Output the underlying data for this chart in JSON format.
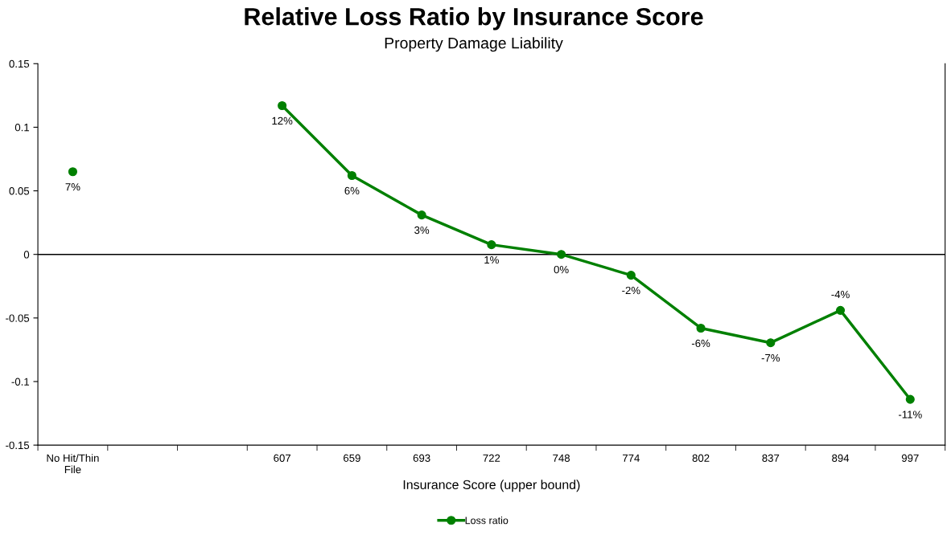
{
  "chart_data": {
    "type": "line",
    "title": "Relative Loss Ratio by Insurance Score",
    "subtitle": "Property Damage Liability",
    "xlabel": "Insurance Score (upper bound)",
    "categories": [
      "No Hit/Thin\nFile",
      null,
      null,
      "607",
      "659",
      "693",
      "722",
      "748",
      "774",
      "802",
      "837",
      "894",
      "997"
    ],
    "series": [
      {
        "name": "Loss ratio",
        "color": "#008000",
        "values": [
          0.065,
          null,
          null,
          0.117,
          0.062,
          0.031,
          0.0076,
          0.0,
          -0.0164,
          -0.058,
          -0.0695,
          -0.044,
          -0.114
        ],
        "value_labels": [
          "7%",
          null,
          null,
          "12%",
          "6%",
          "3%",
          "1%",
          "0%",
          "-2%",
          "-6%",
          "-7%",
          "-4%",
          "-11%"
        ]
      }
    ],
    "ylim": [
      -0.15,
      0.15
    ],
    "yticks": [
      -0.15,
      -0.1,
      -0.05,
      0,
      0.05,
      0.1,
      0.15
    ],
    "ref_lines": [
      {
        "axis": "y",
        "value": 0,
        "color": "#000000"
      }
    ],
    "grid": false,
    "legend": "bottom",
    "marker": "circle",
    "line_style": "solid"
  }
}
